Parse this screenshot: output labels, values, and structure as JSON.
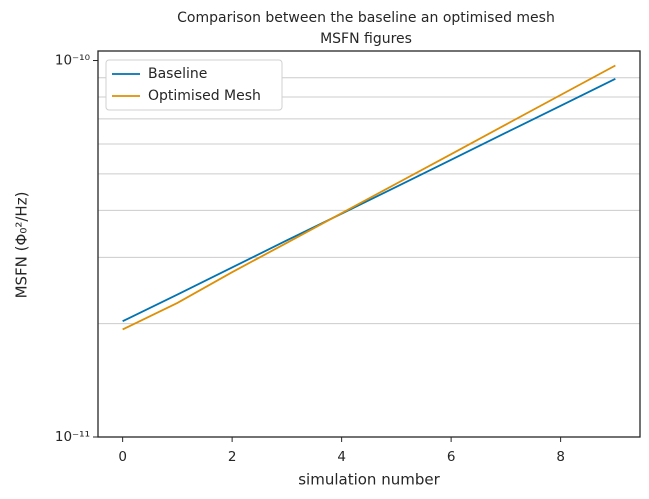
{
  "chart_data": {
    "type": "line",
    "title": [
      "Comparison between the baseline an optimised mesh",
      "MSFN figures"
    ],
    "xlabel": "simulation number",
    "ylabel": "MSFN (Φ₀²/Hz)",
    "x": [
      0,
      1,
      2,
      3,
      4,
      5,
      6,
      7,
      8,
      9
    ],
    "series": [
      {
        "name": "Baseline",
        "color": "#0173b2",
        "values": [
          2.03e-11,
          2.39e-11,
          2.82e-11,
          3.33e-11,
          3.92e-11,
          4.62e-11,
          5.45e-11,
          6.43e-11,
          7.58e-11,
          8.94e-11
        ]
      },
      {
        "name": "Optimised Mesh",
        "color": "#de8f05",
        "values": [
          1.93e-11,
          2.27e-11,
          2.74e-11,
          3.28e-11,
          3.93e-11,
          4.71e-11,
          5.64e-11,
          6.76e-11,
          8.1e-11,
          9.7e-11
        ]
      }
    ],
    "xlim": [
      -0.45,
      9.45
    ],
    "xticks": [
      0,
      2,
      4,
      6,
      8
    ],
    "ylim": [
      1e-11,
      1.06e-10
    ],
    "yscale": "log",
    "yticks": [
      {
        "value": 1e-11,
        "label": "10⁻¹¹"
      },
      {
        "value": 1e-10,
        "label": "10⁻¹⁰"
      }
    ],
    "yminorticks": [
      2e-11,
      3e-11,
      4e-11,
      5e-11,
      6e-11,
      7e-11,
      8e-11,
      9e-11
    ],
    "grid": true,
    "legend": "upper left"
  }
}
